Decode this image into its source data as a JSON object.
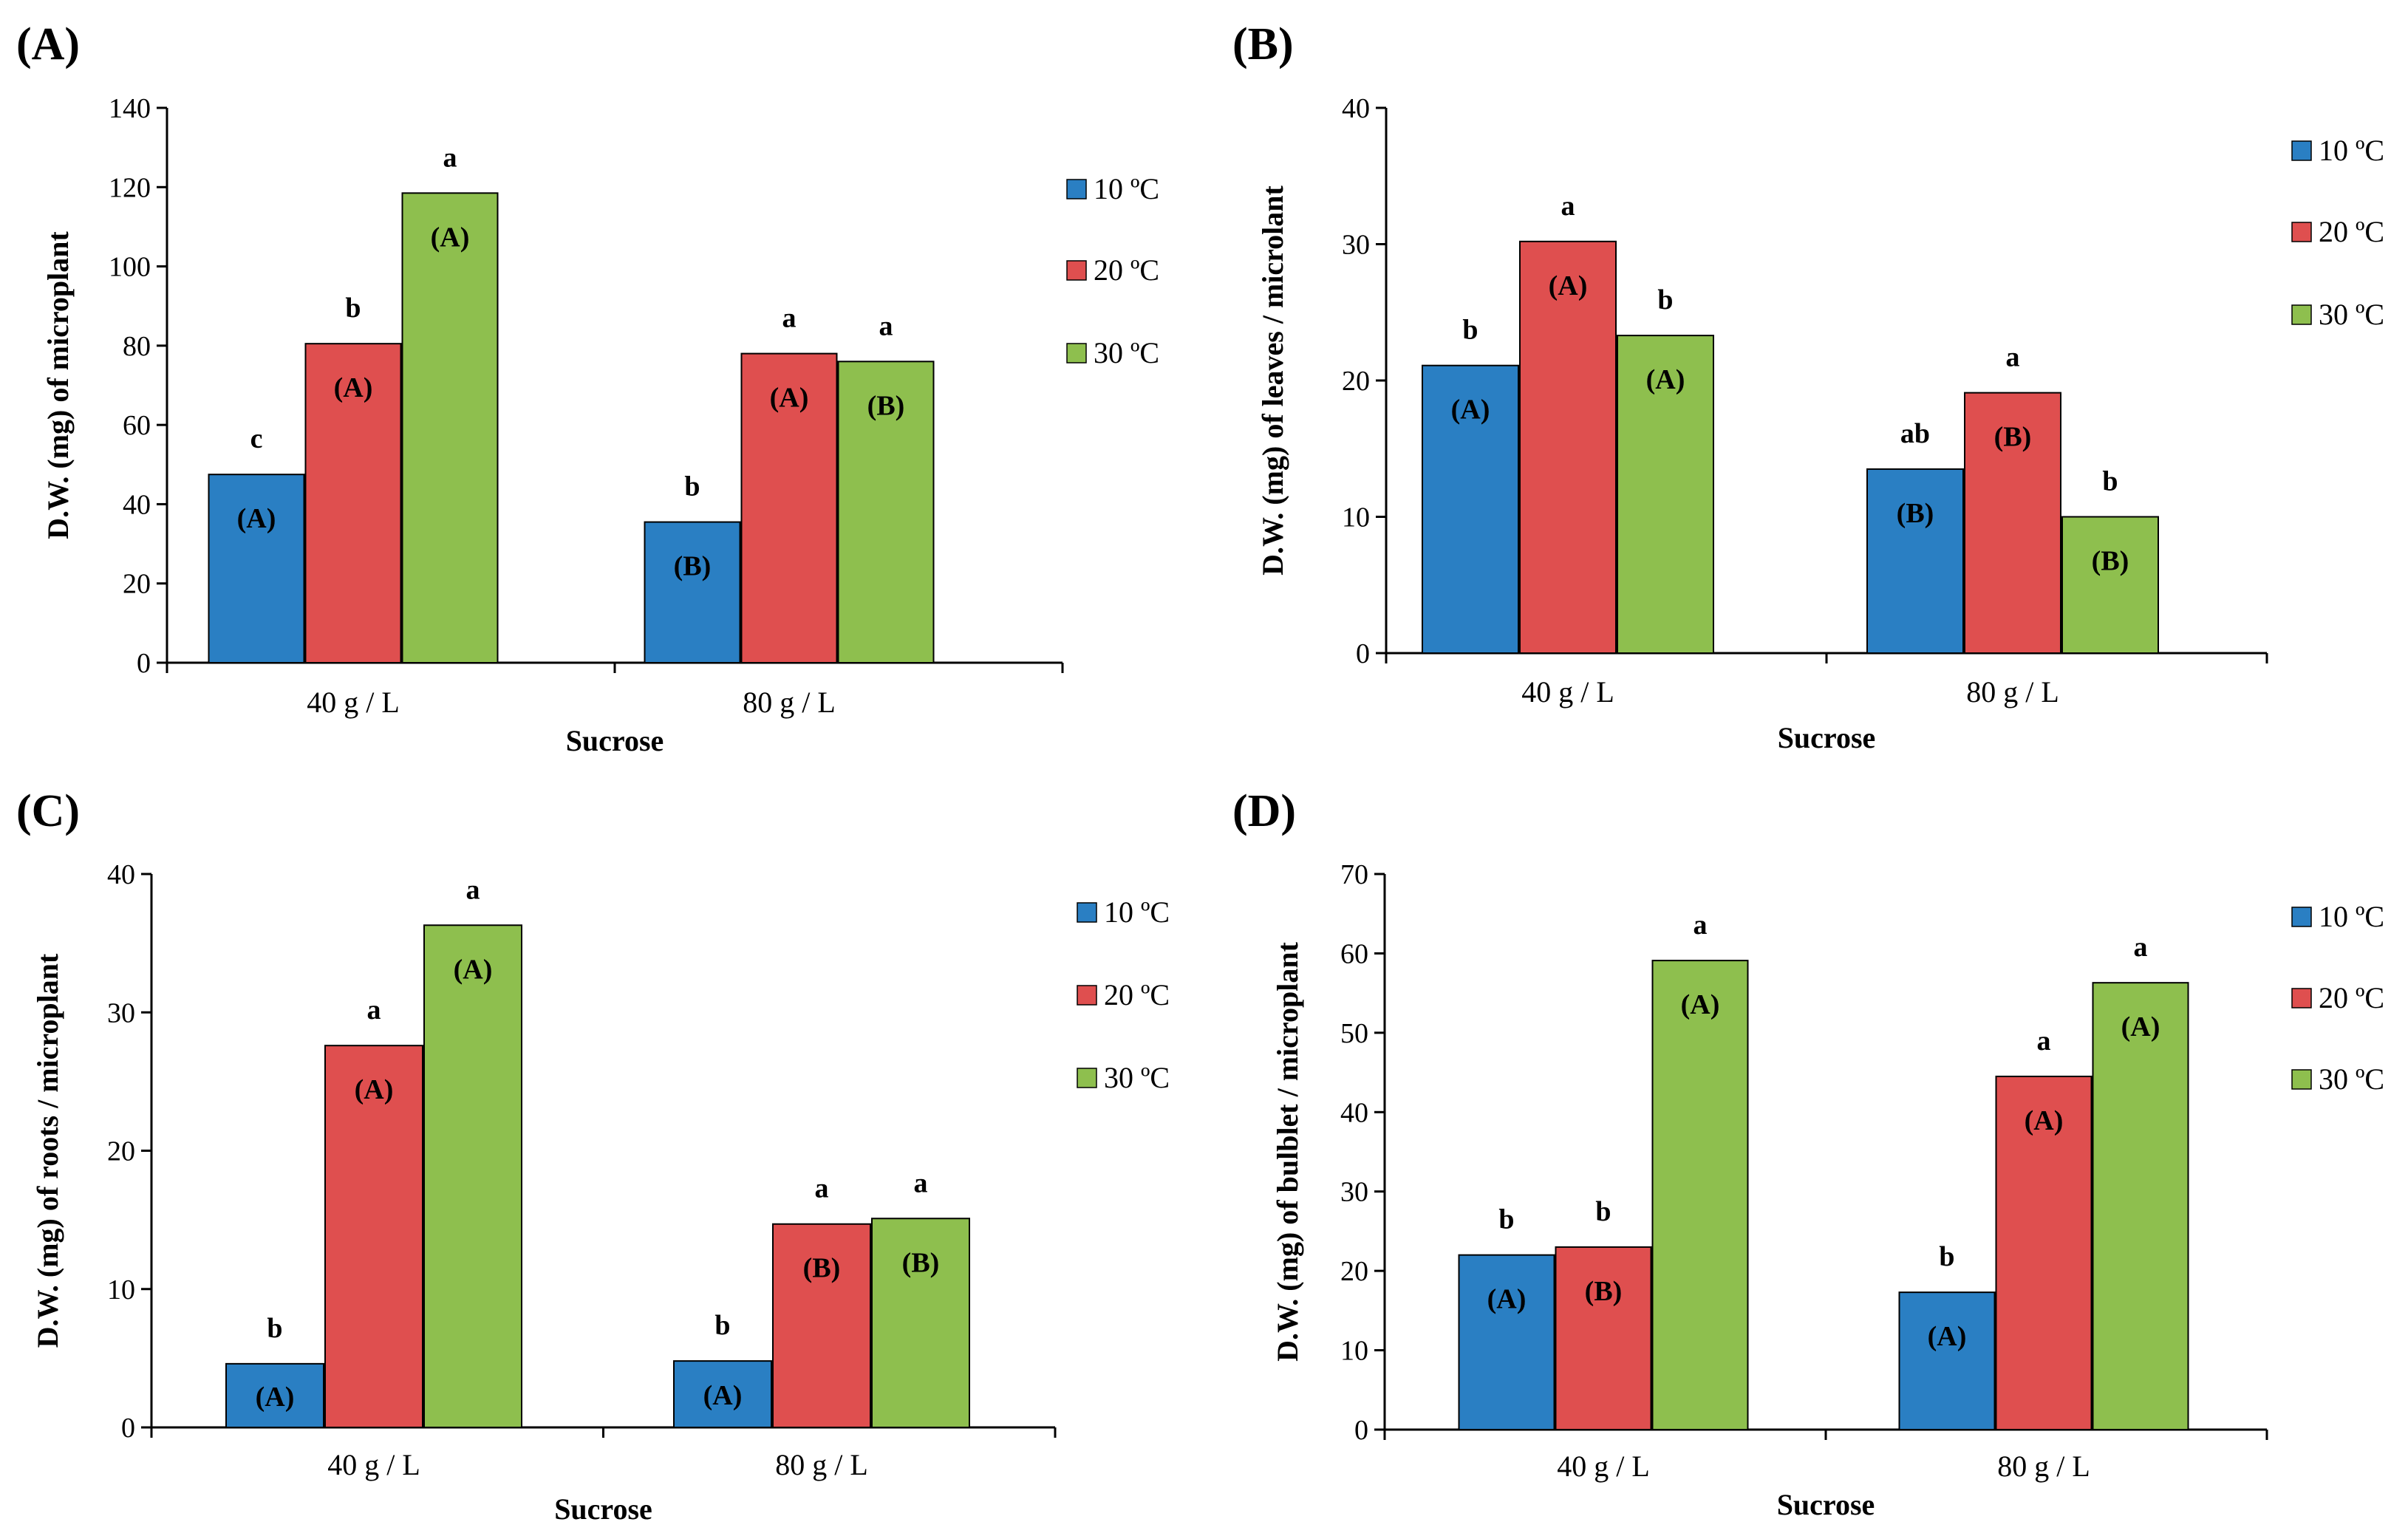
{
  "colors": {
    "10": "#2a7fc3",
    "20": "#df4f4f",
    "30": "#8ebf4e",
    "axis": "#000000"
  },
  "chart_data": [
    {
      "panel": "(A)",
      "type": "bar",
      "xlabel": "Sucrose",
      "ylabel": "D.W. (mg) of microplant",
      "categories": [
        "40 g / L",
        "80 g / L"
      ],
      "ylim": [
        0,
        140
      ],
      "yticks": [
        0,
        20,
        40,
        60,
        80,
        100,
        120,
        140
      ],
      "legend_position": "right",
      "series": [
        {
          "name": "10 ºC",
          "color_key": "10",
          "values": [
            47.5,
            35.5
          ],
          "letters": [
            "c",
            "b"
          ],
          "groups": [
            "(A)",
            "(B)"
          ]
        },
        {
          "name": "20 ºC",
          "color_key": "20",
          "values": [
            80.5,
            78
          ],
          "letters": [
            "b",
            "a"
          ],
          "groups": [
            "(A)",
            "(A)"
          ]
        },
        {
          "name": "30 ºC",
          "color_key": "30",
          "values": [
            118.5,
            76
          ],
          "letters": [
            "a",
            "a"
          ],
          "groups": [
            "(A)",
            "(B)"
          ]
        }
      ]
    },
    {
      "panel": "(B)",
      "type": "bar",
      "xlabel": "Sucrose",
      "ylabel": "D.W. (mg) of leaves / microlant",
      "categories": [
        "40 g / L",
        "80 g / L"
      ],
      "ylim": [
        0,
        40
      ],
      "yticks": [
        0,
        10,
        20,
        30,
        40
      ],
      "legend_position": "right",
      "series": [
        {
          "name": "10 ºC",
          "color_key": "10",
          "values": [
            21.1,
            13.5
          ],
          "letters": [
            "b",
            "ab"
          ],
          "groups": [
            "(A)",
            "(B)"
          ]
        },
        {
          "name": "20 ºC",
          "color_key": "20",
          "values": [
            30.2,
            19.1
          ],
          "letters": [
            "a",
            "a"
          ],
          "groups": [
            "(A)",
            "(B)"
          ]
        },
        {
          "name": "30 ºC",
          "color_key": "30",
          "values": [
            23.3,
            10
          ],
          "letters": [
            "b",
            "b"
          ],
          "groups": [
            "(A)",
            "(B)"
          ]
        }
      ]
    },
    {
      "panel": "(C)",
      "type": "bar",
      "xlabel": "Sucrose",
      "ylabel": "D.W. (mg) of roots / microplant",
      "categories": [
        "40 g / L",
        "80 g / L"
      ],
      "ylim": [
        0,
        40
      ],
      "yticks": [
        0,
        10,
        20,
        30,
        40
      ],
      "legend_position": "right",
      "series": [
        {
          "name": "10 ºC",
          "color_key": "10",
          "values": [
            4.6,
            4.8
          ],
          "letters": [
            "b",
            "b"
          ],
          "groups": [
            "(A)",
            "(A)"
          ]
        },
        {
          "name": "20 ºC",
          "color_key": "20",
          "values": [
            27.6,
            14.7
          ],
          "letters": [
            "a",
            "a"
          ],
          "groups": [
            "(A)",
            "(B)"
          ]
        },
        {
          "name": "30 ºC",
          "color_key": "30",
          "values": [
            36.3,
            15.1
          ],
          "letters": [
            "a",
            "a"
          ],
          "groups": [
            "(A)",
            "(B)"
          ]
        }
      ]
    },
    {
      "panel": "(D)",
      "type": "bar",
      "xlabel": "Sucrose",
      "ylabel": "D.W. (mg) of bulblet / microplant",
      "categories": [
        "40 g / L",
        "80 g / L"
      ],
      "ylim": [
        0,
        70
      ],
      "yticks": [
        0,
        10,
        20,
        30,
        40,
        50,
        60,
        70
      ],
      "legend_position": "right",
      "series": [
        {
          "name": "10 ºC",
          "color_key": "10",
          "values": [
            22,
            17.3
          ],
          "letters": [
            "b",
            "b"
          ],
          "groups": [
            "(A)",
            "(A)"
          ]
        },
        {
          "name": "20 ºC",
          "color_key": "20",
          "values": [
            23,
            44.5
          ],
          "letters": [
            "b",
            "a"
          ],
          "groups": [
            "(B)",
            "(A)"
          ]
        },
        {
          "name": "30 ºC",
          "color_key": "30",
          "values": [
            59.1,
            56.3
          ],
          "letters": [
            "a",
            "a"
          ],
          "groups": [
            "(A)",
            "(A)"
          ]
        }
      ]
    }
  ]
}
